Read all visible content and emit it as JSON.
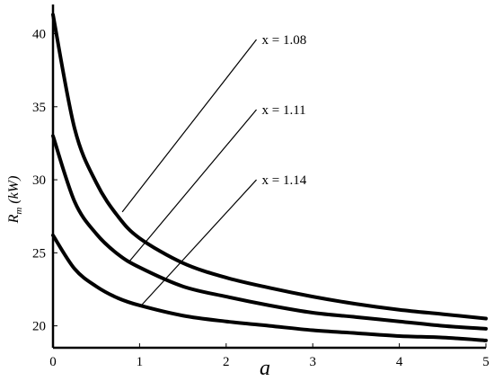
{
  "chart_data": {
    "type": "line",
    "xlabel": "a",
    "ylabel": "R_m (kW)",
    "ylabel_main": "R",
    "ylabel_sub": "m",
    "ylabel_unit": " (kW)",
    "xlim": [
      0,
      5
    ],
    "ylim": [
      18.5,
      42
    ],
    "x_ticks": [
      "0",
      "1",
      "2",
      "3",
      "4",
      "5"
    ],
    "y_ticks": [
      "20",
      "25",
      "30",
      "35",
      "40"
    ],
    "grid": false,
    "series": [
      {
        "name": "x = 1.08",
        "x": [
          0,
          0.25,
          0.5,
          0.75,
          1,
          1.5,
          2,
          2.5,
          3,
          3.5,
          4,
          4.5,
          5
        ],
        "y": [
          41.3,
          33.5,
          29.8,
          27.5,
          26.0,
          24.3,
          23.3,
          22.6,
          22.0,
          21.5,
          21.1,
          20.8,
          20.5
        ]
      },
      {
        "name": "x = 1.11",
        "x": [
          0,
          0.25,
          0.5,
          0.75,
          1,
          1.5,
          2,
          2.5,
          3,
          3.5,
          4,
          4.5,
          5
        ],
        "y": [
          33.0,
          28.5,
          26.3,
          24.9,
          24.0,
          22.7,
          22.0,
          21.4,
          20.9,
          20.6,
          20.3,
          20.0,
          19.8
        ]
      },
      {
        "name": "x = 1.14",
        "x": [
          0,
          0.25,
          0.5,
          0.75,
          1,
          1.5,
          2,
          2.5,
          3,
          3.5,
          4,
          4.5,
          5
        ],
        "y": [
          26.2,
          23.9,
          22.7,
          21.9,
          21.4,
          20.7,
          20.3,
          20.0,
          19.7,
          19.5,
          19.3,
          19.2,
          19.0
        ]
      }
    ],
    "annotations": [
      {
        "text": "x = 1.08",
        "line_from": [
          0.8,
          27.8
        ],
        "line_to": [
          2.35,
          39.6
        ]
      },
      {
        "text": "x = 1.11",
        "line_from": [
          0.88,
          24.4
        ],
        "line_to": [
          2.35,
          34.8
        ]
      },
      {
        "text": "x = 1.14",
        "line_from": [
          1.02,
          21.4
        ],
        "line_to": [
          2.35,
          30.0
        ]
      }
    ]
  }
}
